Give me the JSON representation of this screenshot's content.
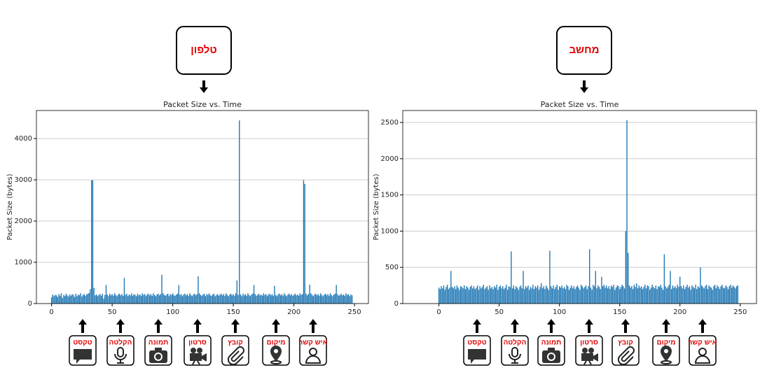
{
  "chart_data": [
    {
      "type": "bar",
      "header": "טלפון",
      "title": "Packet Size vs. Time",
      "ylabel": "Packet Size (bytes)",
      "color": "#1f77b4",
      "grid": "y",
      "xlim": [
        -12.5,
        261.5
      ],
      "ylim": [
        0,
        4680
      ],
      "xticks": [
        0,
        50,
        100,
        150,
        200,
        250
      ],
      "yticks": [
        0,
        1000,
        2000,
        3000,
        4000
      ],
      "values": [
        150,
        220,
        180,
        210,
        200,
        160,
        230,
        190,
        250,
        140,
        210,
        180,
        240,
        200,
        170,
        220,
        190,
        230,
        210,
        160,
        240,
        180,
        220,
        200,
        250,
        170,
        210,
        230,
        190,
        220,
        240,
        260,
        350,
        2990,
        2990,
        380,
        200,
        220,
        180,
        210,
        230,
        190,
        240,
        120,
        210,
        450,
        220,
        180,
        240,
        200,
        230,
        190,
        250,
        210,
        180,
        220,
        240,
        200,
        230,
        190,
        620,
        210,
        240,
        180,
        220,
        200,
        250,
        190,
        230,
        210,
        180,
        240,
        200,
        220,
        190,
        250,
        210,
        230,
        180,
        220,
        240,
        200,
        230,
        190,
        250,
        210,
        180,
        220,
        240,
        200,
        230,
        700,
        250,
        210,
        190,
        220,
        240,
        180,
        230,
        210,
        250,
        200,
        190,
        220,
        240,
        450,
        210,
        230,
        180,
        220,
        240,
        200,
        230,
        190,
        250,
        210,
        180,
        220,
        240,
        200,
        230,
        660,
        250,
        210,
        190,
        220,
        240,
        180,
        230,
        210,
        250,
        200,
        190,
        220,
        240,
        180,
        210,
        230,
        190,
        220,
        240,
        200,
        230,
        190,
        250,
        210,
        180,
        220,
        240,
        200,
        230,
        190,
        250,
        560,
        210,
        4440,
        220,
        180,
        240,
        200,
        230,
        190,
        250,
        210,
        180,
        220,
        240,
        450,
        230,
        190,
        210,
        240,
        200,
        220,
        190,
        250,
        210,
        230,
        180,
        220,
        240,
        200,
        230,
        190,
        430,
        210,
        180,
        220,
        240,
        200,
        230,
        190,
        250,
        210,
        180,
        220,
        240,
        200,
        230,
        190,
        210,
        240,
        200,
        220,
        190,
        250,
        210,
        230,
        2990,
        2900,
        240,
        200,
        230,
        460,
        250,
        210,
        180,
        220,
        240,
        200,
        230,
        190,
        250,
        210,
        180,
        220,
        240,
        200,
        230,
        190,
        250,
        210,
        180,
        220,
        240,
        450,
        230,
        190,
        210,
        240,
        200,
        220,
        190,
        250,
        210,
        230,
        180,
        220,
        200
      ],
      "actions": [
        "טקסט",
        "הקלטה",
        "תמונה",
        "סרטון",
        "קובץ",
        "מיקום",
        "איש קשר"
      ]
    },
    {
      "type": "bar",
      "header": "מחשב",
      "title": "Packet Size vs. Time",
      "ylabel": "Packet Size (bytes)",
      "color": "#1f77b4",
      "grid": "y",
      "xlim": [
        -30,
        263.5
      ],
      "ylim": [
        0,
        2665
      ],
      "xticks": [
        0,
        50,
        100,
        150,
        200,
        250
      ],
      "yticks": [
        0,
        500,
        1000,
        1500,
        2000,
        2500
      ],
      "values": [
        220,
        200,
        240,
        210,
        250,
        190,
        230,
        260,
        200,
        220,
        450,
        230,
        210,
        240,
        200,
        250,
        220,
        190,
        240,
        230,
        210,
        250,
        200,
        240,
        220,
        190,
        230,
        250,
        210,
        240,
        200,
        220,
        250,
        190,
        240,
        210,
        230,
        260,
        200,
        220,
        240,
        190,
        250,
        210,
        230,
        200,
        240,
        220,
        260,
        190,
        230,
        250,
        210,
        240,
        200,
        220,
        260,
        190,
        240,
        230,
        720,
        210,
        250,
        200,
        240,
        220,
        190,
        230,
        250,
        210,
        450,
        200,
        240,
        220,
        250,
        190,
        230,
        210,
        260,
        200,
        240,
        220,
        250,
        190,
        230,
        280,
        210,
        240,
        200,
        250,
        220,
        190,
        730,
        240,
        210,
        250,
        200,
        230,
        260,
        190,
        240,
        220,
        250,
        210,
        230,
        200,
        260,
        240,
        190,
        220,
        250,
        210,
        240,
        200,
        230,
        250,
        220,
        190,
        260,
        240,
        210,
        230,
        250,
        200,
        240,
        750,
        220,
        190,
        260,
        240,
        450,
        210,
        250,
        230,
        200,
        370,
        240,
        260,
        220,
        250,
        210,
        240,
        200,
        250,
        230,
        260,
        190,
        220,
        250,
        240,
        200,
        230,
        260,
        240,
        210,
        1000,
        2530,
        700,
        250,
        220,
        240,
        200,
        260,
        230,
        280,
        210,
        250,
        220,
        240,
        200,
        230,
        260,
        210,
        250,
        240,
        190,
        220,
        260,
        230,
        210,
        250,
        200,
        240,
        230,
        260,
        220,
        190,
        680,
        240,
        210,
        230,
        260,
        450,
        200,
        250,
        220,
        240,
        210,
        260,
        230,
        370,
        240,
        210,
        250,
        200,
        230,
        260,
        220,
        240,
        190,
        250,
        230,
        210,
        260,
        200,
        240,
        220,
        500,
        250,
        230,
        210,
        240,
        260,
        200,
        250,
        230,
        220,
        190,
        240,
        260,
        210,
        250,
        230,
        200,
        240,
        260,
        220,
        210,
        250,
        230,
        200,
        240,
        260,
        220,
        250,
        230,
        210,
        240,
        250
      ],
      "actions": [
        "טקסט",
        "הקלטה",
        "תמונה",
        "סרטון",
        "קובץ",
        "מיקום",
        "איש קשר"
      ]
    }
  ]
}
